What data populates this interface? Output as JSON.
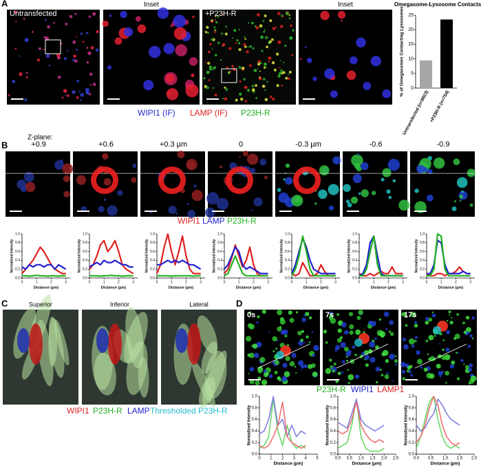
{
  "figure": {
    "panel_labels": [
      "A",
      "B",
      "C",
      "D"
    ],
    "a": {
      "images": [
        "Untransfected",
        "Inset",
        "+P23H-R",
        "Inset"
      ],
      "legend": [
        "WIPI1 (IF)",
        "LAMP (IF)",
        "P23H-R"
      ]
    },
    "b": {
      "zplane_title": "Z-plane:",
      "zplanes": [
        "+0.9",
        "+0.6",
        "+0.3 µm",
        "0",
        "-0.3 µm",
        "-0.6",
        "-0.9"
      ],
      "legend": [
        "WIPI1",
        "LAMP",
        "P23H-R"
      ]
    },
    "c": {
      "views": [
        "Superior",
        "Inferior",
        "Lateral"
      ],
      "legend": [
        "WIPI1",
        "P23H-R",
        "LAMP",
        "Thresholded P23H-R"
      ]
    },
    "d": {
      "times": [
        "0s",
        "7s",
        "17s"
      ],
      "legend": [
        "P23H-R",
        "WIPI1",
        "LAMP1"
      ]
    }
  },
  "chart_data": [
    {
      "type": "bar",
      "title": "Omegasome-Lysosome Contacts",
      "ylabel": "% of Omegasomes Contacting Lysosomes",
      "categories": [
        "Untransfected (n=9823)",
        "+P23H-R (n=754)"
      ],
      "values": [
        9.5,
        23.5
      ],
      "colors": [
        "#a6a6a6",
        "#000000"
      ],
      "ylim": [
        0,
        25
      ],
      "yticks": [
        0,
        5,
        10,
        15,
        20,
        25
      ]
    },
    {
      "type": "line",
      "xlabel": "Distance (µm)",
      "ylabel": "Normalized Intensity",
      "x": [
        0,
        0.25,
        0.5,
        0.75,
        1,
        1.25,
        1.5,
        1.75,
        2,
        2.25,
        2.5,
        2.75,
        3
      ],
      "xlim": [
        0,
        3.3
      ],
      "xticks": [
        0,
        1,
        2,
        3
      ],
      "ylim": [
        0,
        1
      ],
      "yticks": [
        {
          "value": 0,
          "label": "0.0"
        },
        0.2,
        0.4,
        0.6,
        0.8,
        {
          "value": 1,
          "label": "1.0"
        }
      ],
      "series": [
        {
          "color": "#e02020",
          "values": [
            0.1,
            0.2,
            0.3,
            0.4,
            0.55,
            0.7,
            0.6,
            0.45,
            0.3,
            0.2,
            0.15,
            0.1,
            0.1
          ]
        },
        {
          "color": "#2020d0",
          "values": [
            0.25,
            0.2,
            0.3,
            0.25,
            0.3,
            0.3,
            0.25,
            0.3,
            0.3,
            0.2,
            0.3,
            0.25,
            0.2
          ]
        },
        {
          "color": "#20b020",
          "values": [
            0.05,
            0.05,
            0.04,
            0.05,
            0.06,
            0.05,
            0.05,
            0.04,
            0.05,
            0.05,
            0.04,
            0.05,
            0.05
          ]
        }
      ]
    },
    {
      "type": "line",
      "xlabel": "Distance (µm)",
      "ylabel": "Normalized Intensity",
      "x": [
        0,
        0.25,
        0.5,
        0.75,
        1,
        1.25,
        1.5,
        1.75,
        2,
        2.25,
        2.5,
        2.75,
        3
      ],
      "xlim": [
        0,
        3.3
      ],
      "xticks": [
        0,
        1,
        2,
        3
      ],
      "ylim": [
        0,
        1
      ],
      "yticks": [
        {
          "value": 0,
          "label": "0.0"
        },
        0.2,
        0.4,
        0.6,
        0.8,
        {
          "value": 1,
          "label": "1.0"
        }
      ],
      "series": [
        {
          "color": "#e02020",
          "values": [
            0.2,
            0.3,
            0.5,
            0.75,
            0.85,
            0.6,
            0.7,
            0.85,
            0.6,
            0.3,
            0.2,
            0.15,
            0.1
          ]
        },
        {
          "color": "#2020d0",
          "values": [
            0.25,
            0.3,
            0.35,
            0.3,
            0.4,
            0.35,
            0.35,
            0.4,
            0.35,
            0.3,
            0.3,
            0.25,
            0.25
          ]
        },
        {
          "color": "#20b020",
          "values": [
            0.05,
            0.05,
            0.05,
            0.04,
            0.05,
            0.05,
            0.06,
            0.05,
            0.05,
            0.04,
            0.05,
            0.05,
            0.05
          ]
        }
      ]
    },
    {
      "type": "line",
      "xlabel": "Distance (µm)",
      "ylabel": "Normalized Intensity",
      "x": [
        0,
        0.25,
        0.5,
        0.75,
        1,
        1.25,
        1.5,
        1.75,
        2,
        2.25,
        2.5,
        2.75,
        3
      ],
      "xlim": [
        0,
        3.3
      ],
      "xticks": [
        0,
        1,
        2,
        3
      ],
      "ylim": [
        0,
        1
      ],
      "yticks": [
        {
          "value": 0,
          "label": "0.0"
        },
        0.2,
        0.4,
        0.6,
        0.8,
        {
          "value": 1,
          "label": "1.0"
        }
      ],
      "series": [
        {
          "color": "#e02020",
          "values": [
            0.1,
            0.3,
            0.7,
            1.0,
            0.6,
            0.3,
            0.6,
            0.95,
            0.5,
            0.2,
            0.1,
            0.1,
            0.1
          ]
        },
        {
          "color": "#2020d0",
          "values": [
            0.3,
            0.3,
            0.35,
            0.4,
            0.35,
            0.4,
            0.35,
            0.4,
            0.35,
            0.3,
            0.3,
            0.25,
            0.2
          ]
        },
        {
          "color": "#20b020",
          "values": [
            0.05,
            0.05,
            0.05,
            0.05,
            0.04,
            0.05,
            0.05,
            0.05,
            0.05,
            0.05,
            0.04,
            0.05,
            0.05
          ]
        }
      ]
    },
    {
      "type": "line",
      "xlabel": "Distance (µm)",
      "ylabel": "Normalized Intensity",
      "x": [
        0,
        0.25,
        0.5,
        0.75,
        1,
        1.25,
        1.5,
        1.75,
        2,
        2.25,
        2.5,
        2.75,
        3
      ],
      "xlim": [
        0,
        3.3
      ],
      "xticks": [
        0,
        1,
        2,
        3
      ],
      "ylim": [
        0,
        1
      ],
      "yticks": [
        {
          "value": 0,
          "label": "0.0"
        },
        0.2,
        0.4,
        0.6,
        0.8,
        {
          "value": 1,
          "label": "1.0"
        }
      ],
      "series": [
        {
          "color": "#e02020",
          "values": [
            0.1,
            0.2,
            0.45,
            0.75,
            0.5,
            0.25,
            0.4,
            0.7,
            0.3,
            0.1,
            0.05,
            0.05,
            0.05
          ]
        },
        {
          "color": "#2020d0",
          "values": [
            0.2,
            0.3,
            0.5,
            0.7,
            0.6,
            0.3,
            0.2,
            0.25,
            0.2,
            0.15,
            0.1,
            0.1,
            0.1
          ]
        },
        {
          "color": "#20b020",
          "values": [
            0.05,
            0.1,
            0.3,
            0.5,
            0.3,
            0.1,
            0.05,
            0.05,
            0.05,
            0.05,
            0.05,
            0.05,
            0.05
          ]
        }
      ]
    },
    {
      "type": "line",
      "xlabel": "Distance (µm)",
      "ylabel": "Normalized Intensity",
      "x": [
        0,
        0.25,
        0.5,
        0.75,
        1,
        1.25,
        1.5,
        1.75,
        2,
        2.25,
        2.5,
        2.75,
        3
      ],
      "xlim": [
        0,
        3.3
      ],
      "xticks": [
        0,
        1,
        2,
        3
      ],
      "ylim": [
        0,
        1
      ],
      "yticks": [
        {
          "value": 0,
          "label": "0.0"
        },
        0.2,
        0.4,
        0.6,
        0.8,
        {
          "value": 1,
          "label": "1.0"
        }
      ],
      "series": [
        {
          "color": "#e02020",
          "values": [
            0.1,
            0.05,
            0.1,
            0.35,
            0.2,
            0.05,
            0.05,
            0.1,
            0.3,
            0.15,
            0.05,
            0.05,
            0.05
          ]
        },
        {
          "color": "#2020d0",
          "values": [
            0.1,
            0.3,
            0.6,
            0.9,
            0.7,
            0.4,
            0.2,
            0.15,
            0.1,
            0.1,
            0.1,
            0.1,
            0.1
          ]
        },
        {
          "color": "#20b020",
          "values": [
            0.05,
            0.2,
            0.5,
            0.95,
            0.6,
            0.2,
            0.05,
            0.05,
            0.05,
            0.05,
            0.05,
            0.05,
            0.05
          ]
        }
      ]
    },
    {
      "type": "line",
      "xlabel": "Distance (µm)",
      "ylabel": "Normalized Intensity",
      "x": [
        0,
        0.25,
        0.5,
        0.75,
        1,
        1.25,
        1.5,
        1.75,
        2,
        2.25,
        2.5,
        2.75,
        3
      ],
      "xlim": [
        0,
        3.3
      ],
      "xticks": [
        0,
        1,
        2,
        3
      ],
      "ylim": [
        0,
        1
      ],
      "yticks": [
        {
          "value": 0,
          "label": "0.0"
        },
        0.2,
        0.4,
        0.6,
        0.8,
        {
          "value": 1,
          "label": "1.0"
        }
      ],
      "series": [
        {
          "color": "#e02020",
          "values": [
            0.1,
            0.05,
            0.05,
            0.1,
            0.05,
            0.1,
            0.15,
            0.1,
            0.1,
            0.25,
            0.1,
            0.1,
            0.1
          ]
        },
        {
          "color": "#2020d0",
          "values": [
            0.05,
            0.1,
            0.3,
            0.8,
            0.95,
            0.5,
            0.1,
            0.05,
            0.05,
            0.05,
            0.05,
            0.05,
            0.05
          ]
        },
        {
          "color": "#20b020",
          "values": [
            0.05,
            0.05,
            0.2,
            0.6,
            0.95,
            0.3,
            0.05,
            0.05,
            0.05,
            0.05,
            0.05,
            0.05,
            0.05
          ]
        }
      ]
    },
    {
      "type": "line",
      "xlabel": "Distance (µm)",
      "ylabel": "Normalized Intensity",
      "x": [
        0,
        0.25,
        0.5,
        0.75,
        1,
        1.25,
        1.5,
        1.75,
        2,
        2.25,
        2.5,
        2.75,
        3
      ],
      "xlim": [
        0,
        3.3
      ],
      "xticks": [
        0,
        1,
        2,
        3
      ],
      "ylim": [
        0,
        1
      ],
      "yticks": [
        {
          "value": 0,
          "label": "0.0"
        },
        0.2,
        0.4,
        0.6,
        0.8,
        {
          "value": 1,
          "label": "1.0"
        }
      ],
      "series": [
        {
          "color": "#e02020",
          "values": [
            0.1,
            0.05,
            0.05,
            0.1,
            0.1,
            0.05,
            0.1,
            0.1,
            0.15,
            0.25,
            0.15,
            0.1,
            0.1
          ]
        },
        {
          "color": "#2020d0",
          "values": [
            0.1,
            0.1,
            0.3,
            0.85,
            0.8,
            0.3,
            0.1,
            0.1,
            0.1,
            0.1,
            0.15,
            0.1,
            0.1
          ]
        },
        {
          "color": "#20b020",
          "values": [
            0.05,
            0.05,
            0.2,
            1.0,
            0.95,
            0.2,
            0.05,
            0.05,
            0.05,
            0.05,
            0.05,
            0.05,
            0.05
          ]
        }
      ]
    },
    {
      "type": "line",
      "xlabel": "Distance (µm)",
      "ylabel": "Normalized Intensity",
      "x": [
        0,
        0.4,
        0.8,
        1.2,
        1.6,
        2,
        2.4,
        2.8,
        3.2,
        3.6,
        4
      ],
      "xlim": [
        0,
        5
      ],
      "xticks": [
        0,
        1,
        2,
        3,
        4,
        5
      ],
      "ylim": [
        0,
        1
      ],
      "yticks": [
        {
          "value": 0,
          "label": "0.0"
        },
        0.2,
        0.4,
        0.6,
        0.8,
        {
          "value": 1,
          "label": "1.0"
        }
      ],
      "series": [
        {
          "color": "#6ad86a",
          "values": [
            0.1,
            0.15,
            0.3,
            0.95,
            0.4,
            0.15,
            0.5,
            0.2,
            0.1,
            0.15,
            0.1
          ]
        },
        {
          "color": "#8080e0",
          "values": [
            0.35,
            0.4,
            0.6,
            1.0,
            0.5,
            0.6,
            0.3,
            0.5,
            0.3,
            0.4,
            0.35
          ]
        },
        {
          "color": "#f07070",
          "values": [
            0.15,
            0.1,
            0.15,
            0.3,
            0.5,
            0.9,
            0.3,
            0.2,
            0.15,
            0.1,
            0.15
          ]
        }
      ]
    },
    {
      "type": "line",
      "xlabel": "Distance (µm)",
      "ylabel": "Normalized Intensity",
      "x": [
        0,
        0.2,
        0.4,
        0.6,
        0.8,
        1,
        1.2,
        1.4,
        1.6,
        1.8,
        2
      ],
      "xlim": [
        0,
        2.5
      ],
      "xticks": [
        {
          "value": 0,
          "label": "0.0"
        },
        0.5,
        {
          "value": 1,
          "label": "1.0"
        },
        1.5,
        {
          "value": 2,
          "label": "2.0"
        },
        2.5
      ],
      "ylim": [
        0,
        1
      ],
      "yticks": [
        {
          "value": 0,
          "label": "0.0"
        },
        0.2,
        0.4,
        0.6,
        0.8,
        {
          "value": 1,
          "label": "1.0"
        }
      ],
      "series": [
        {
          "color": "#6ad86a",
          "values": [
            0.1,
            0.15,
            0.2,
            0.5,
            0.95,
            0.3,
            0.1,
            0.05,
            0.05,
            0.05,
            0.1
          ]
        },
        {
          "color": "#8080e0",
          "values": [
            0.55,
            0.5,
            0.45,
            0.7,
            0.95,
            0.6,
            0.5,
            0.45,
            0.4,
            0.45,
            0.5
          ]
        },
        {
          "color": "#f07070",
          "values": [
            0.4,
            0.35,
            0.4,
            0.6,
            0.9,
            0.5,
            0.35,
            0.25,
            0.2,
            0.25,
            0.2
          ]
        }
      ]
    },
    {
      "type": "line",
      "xlabel": "Distance (µm)",
      "ylabel": "Normalized Intensity",
      "x": [
        0,
        0.15,
        0.3,
        0.45,
        0.6,
        0.75,
        0.9,
        1.05,
        1.2,
        1.35,
        1.5
      ],
      "xlim": [
        0,
        2
      ],
      "xticks": [
        {
          "value": 0,
          "label": "0.0"
        },
        0.5,
        {
          "value": 1,
          "label": "1.0"
        },
        1.5,
        {
          "value": 2,
          "label": "2.0"
        }
      ],
      "ylim": [
        0,
        1
      ],
      "yticks": [
        {
          "value": 0,
          "label": "0.0"
        },
        0.2,
        0.4,
        0.6,
        0.8,
        {
          "value": 1,
          "label": "1.0"
        }
      ],
      "series": [
        {
          "color": "#6ad86a",
          "values": [
            0.1,
            0.3,
            0.6,
            0.9,
            1.0,
            0.6,
            0.3,
            0.15,
            0.1,
            0.15,
            0.1
          ]
        },
        {
          "color": "#8080e0",
          "values": [
            0.5,
            0.4,
            0.45,
            0.6,
            0.7,
            0.95,
            0.85,
            0.7,
            0.6,
            0.55,
            0.5
          ]
        },
        {
          "color": "#f07070",
          "values": [
            0.2,
            0.3,
            0.5,
            0.8,
            1.0,
            0.85,
            0.5,
            0.3,
            0.2,
            0.15,
            0.2
          ]
        }
      ]
    }
  ]
}
